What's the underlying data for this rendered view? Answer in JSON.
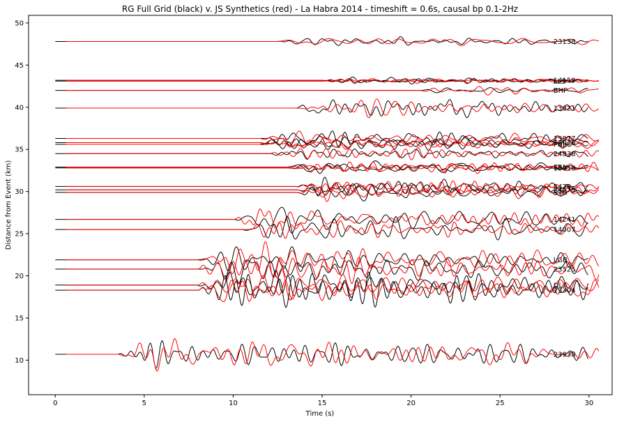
{
  "chart_data": {
    "type": "line",
    "title": "RG Full Grid (black) v. JS Synthetics (red) - La Habra 2014 - timeshift = 0.6s, causal bp 0.1-2Hz",
    "xlabel": "Time (s)",
    "ylabel": "Distance from Event (km)",
    "xlim": [
      -1.5,
      31.3
    ],
    "ylim": [
      5.9,
      50.9
    ],
    "xticks": [
      0,
      5,
      10,
      15,
      20,
      25,
      30
    ],
    "yticks": [
      10,
      15,
      20,
      25,
      30,
      35,
      40,
      45,
      50
    ],
    "grid": false,
    "legend": "none",
    "colors": {
      "observed": "#000000",
      "synthetic": "#ff0000"
    },
    "series": [
      {
        "name": "observed",
        "color": "#000000"
      },
      {
        "name": "synthetic",
        "color": "#ff0000"
      }
    ],
    "stations": [
      {
        "label": "23138",
        "distance": 47.8,
        "onset": 12.5,
        "amp": 0.6,
        "seed": 1
      },
      {
        "label": "14159",
        "distance": 43.2,
        "onset": 15.0,
        "amp": 0.3,
        "seed": 2
      },
      {
        "label": "LLS",
        "distance": 43.1,
        "onset": 15.0,
        "amp": 0.3,
        "seed": 3
      },
      {
        "label": "BHP",
        "distance": 42.0,
        "onset": 20.5,
        "amp": 0.4,
        "seed": 4
      },
      {
        "label": "13921",
        "distance": 39.9,
        "onset": 13.5,
        "amp": 1.0,
        "seed": 5
      },
      {
        "label": "13877",
        "distance": 36.3,
        "onset": 11.5,
        "amp": 0.8,
        "seed": 6
      },
      {
        "label": "14026",
        "distance": 35.8,
        "onset": 11.5,
        "amp": 0.8,
        "seed": 7
      },
      {
        "label": "FUL",
        "distance": 35.6,
        "onset": 11.5,
        "amp": 0.8,
        "seed": 8
      },
      {
        "label": "24838",
        "distance": 34.5,
        "onset": 12.0,
        "amp": 0.7,
        "seed": 9
      },
      {
        "label": "SRN",
        "distance": 32.9,
        "onset": 13.0,
        "amp": 0.7,
        "seed": 10
      },
      {
        "label": "13418",
        "distance": 32.8,
        "onset": 13.0,
        "amp": 0.7,
        "seed": 11
      },
      {
        "label": "5429",
        "distance": 30.6,
        "onset": 13.5,
        "amp": 0.8,
        "seed": 12
      },
      {
        "label": "24575",
        "distance": 30.2,
        "onset": 13.5,
        "amp": 0.8,
        "seed": 13
      },
      {
        "label": "STG",
        "distance": 29.9,
        "onset": 13.5,
        "amp": 0.8,
        "seed": 14
      },
      {
        "label": "14241",
        "distance": 26.7,
        "onset": 10.0,
        "amp": 1.2,
        "seed": 15
      },
      {
        "label": "14007",
        "distance": 25.5,
        "onset": 10.5,
        "amp": 1.3,
        "seed": 16
      },
      {
        "label": "LGB",
        "distance": 21.9,
        "onset": 8.0,
        "amp": 1.6,
        "seed": 17
      },
      {
        "label": "23525",
        "distance": 20.8,
        "onset": 8.0,
        "amp": 1.8,
        "seed": 18
      },
      {
        "label": "DLA",
        "distance": 18.9,
        "onset": 8.0,
        "amp": 1.8,
        "seed": 19
      },
      {
        "label": "13304",
        "distance": 18.3,
        "onset": 8.0,
        "amp": 2.0,
        "seed": 20
      },
      {
        "label": "23938",
        "distance": 10.7,
        "onset": 3.5,
        "amp": 1.4,
        "seed": 21
      }
    ]
  }
}
